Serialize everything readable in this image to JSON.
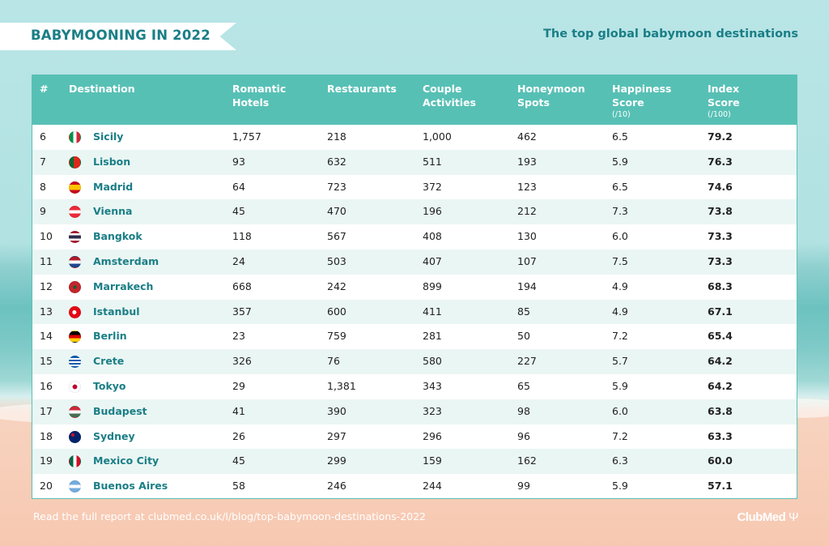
{
  "header": {
    "banner_title": "BABYMOONING IN 2022",
    "subtitle": "The top global babymoon destinations"
  },
  "colors": {
    "accent": "#1a7e86",
    "header_bg": "#57c0b5",
    "row_alt": "#eaf6f4"
  },
  "table": {
    "columns": {
      "rank": "#",
      "destination": "Destination",
      "romantic_hotels": "Romantic Hotels",
      "restaurants": "Restaurants",
      "couple_activities": "Couple Activities",
      "honeymoon_spots": "Honeymoon Spots",
      "happiness_score": "Happiness Score",
      "happiness_unit": "(/10)",
      "index_score": "Index Score",
      "index_unit": "(/100)"
    },
    "rows": [
      {
        "rank": "6",
        "flag": "italy-flag-icon",
        "destination": "Sicily",
        "hotels": "1,757",
        "restaurants": "218",
        "activities": "1,000",
        "spots": "462",
        "happiness": "6.5",
        "index": "79.2"
      },
      {
        "rank": "7",
        "flag": "portugal-flag-icon",
        "destination": "Lisbon",
        "hotels": "93",
        "restaurants": "632",
        "activities": "511",
        "spots": "193",
        "happiness": "5.9",
        "index": "76.3"
      },
      {
        "rank": "8",
        "flag": "spain-flag-icon",
        "destination": "Madrid",
        "hotels": "64",
        "restaurants": "723",
        "activities": "372",
        "spots": "123",
        "happiness": "6.5",
        "index": "74.6"
      },
      {
        "rank": "9",
        "flag": "austria-flag-icon",
        "destination": "Vienna",
        "hotels": "45",
        "restaurants": "470",
        "activities": "196",
        "spots": "212",
        "happiness": "7.3",
        "index": "73.8"
      },
      {
        "rank": "10",
        "flag": "thailand-flag-icon",
        "destination": "Bangkok",
        "hotels": "118",
        "restaurants": "567",
        "activities": "408",
        "spots": "130",
        "happiness": "6.0",
        "index": "73.3"
      },
      {
        "rank": "11",
        "flag": "netherlands-flag-icon",
        "destination": "Amsterdam",
        "hotels": "24",
        "restaurants": "503",
        "activities": "407",
        "spots": "107",
        "happiness": "7.5",
        "index": "73.3"
      },
      {
        "rank": "12",
        "flag": "morocco-flag-icon",
        "destination": "Marrakech",
        "hotels": "668",
        "restaurants": "242",
        "activities": "899",
        "spots": "194",
        "happiness": "4.9",
        "index": "68.3"
      },
      {
        "rank": "13",
        "flag": "turkey-flag-icon",
        "destination": "Istanbul",
        "hotels": "357",
        "restaurants": "600",
        "activities": "411",
        "spots": "85",
        "happiness": "4.9",
        "index": "67.1"
      },
      {
        "rank": "14",
        "flag": "germany-flag-icon",
        "destination": "Berlin",
        "hotels": "23",
        "restaurants": "759",
        "activities": "281",
        "spots": "50",
        "happiness": "7.2",
        "index": "65.4"
      },
      {
        "rank": "15",
        "flag": "greece-flag-icon",
        "destination": "Crete",
        "hotels": "326",
        "restaurants": "76",
        "activities": "580",
        "spots": "227",
        "happiness": "5.7",
        "index": "64.2"
      },
      {
        "rank": "16",
        "flag": "japan-flag-icon",
        "destination": "Tokyo",
        "hotels": "29",
        "restaurants": "1,381",
        "activities": "343",
        "spots": "65",
        "happiness": "5.9",
        "index": "64.2"
      },
      {
        "rank": "17",
        "flag": "hungary-flag-icon",
        "destination": "Budapest",
        "hotels": "41",
        "restaurants": "390",
        "activities": "323",
        "spots": "98",
        "happiness": "6.0",
        "index": "63.8"
      },
      {
        "rank": "18",
        "flag": "australia-flag-icon",
        "destination": "Sydney",
        "hotels": "26",
        "restaurants": "297",
        "activities": "296",
        "spots": "96",
        "happiness": "7.2",
        "index": "63.3"
      },
      {
        "rank": "19",
        "flag": "mexico-flag-icon",
        "destination": "Mexico City",
        "hotels": "45",
        "restaurants": "299",
        "activities": "159",
        "spots": "162",
        "happiness": "6.3",
        "index": "60.0"
      },
      {
        "rank": "20",
        "flag": "argentina-flag-icon",
        "destination": "Buenos Aires",
        "hotels": "58",
        "restaurants": "246",
        "activities": "244",
        "spots": "99",
        "happiness": "5.9",
        "index": "57.1"
      }
    ]
  },
  "footer": {
    "report_text": "Read the full report at clubmed.co.uk/l/blog/top-babymoon-destinations-2022",
    "logo_text": "ClubMed"
  }
}
